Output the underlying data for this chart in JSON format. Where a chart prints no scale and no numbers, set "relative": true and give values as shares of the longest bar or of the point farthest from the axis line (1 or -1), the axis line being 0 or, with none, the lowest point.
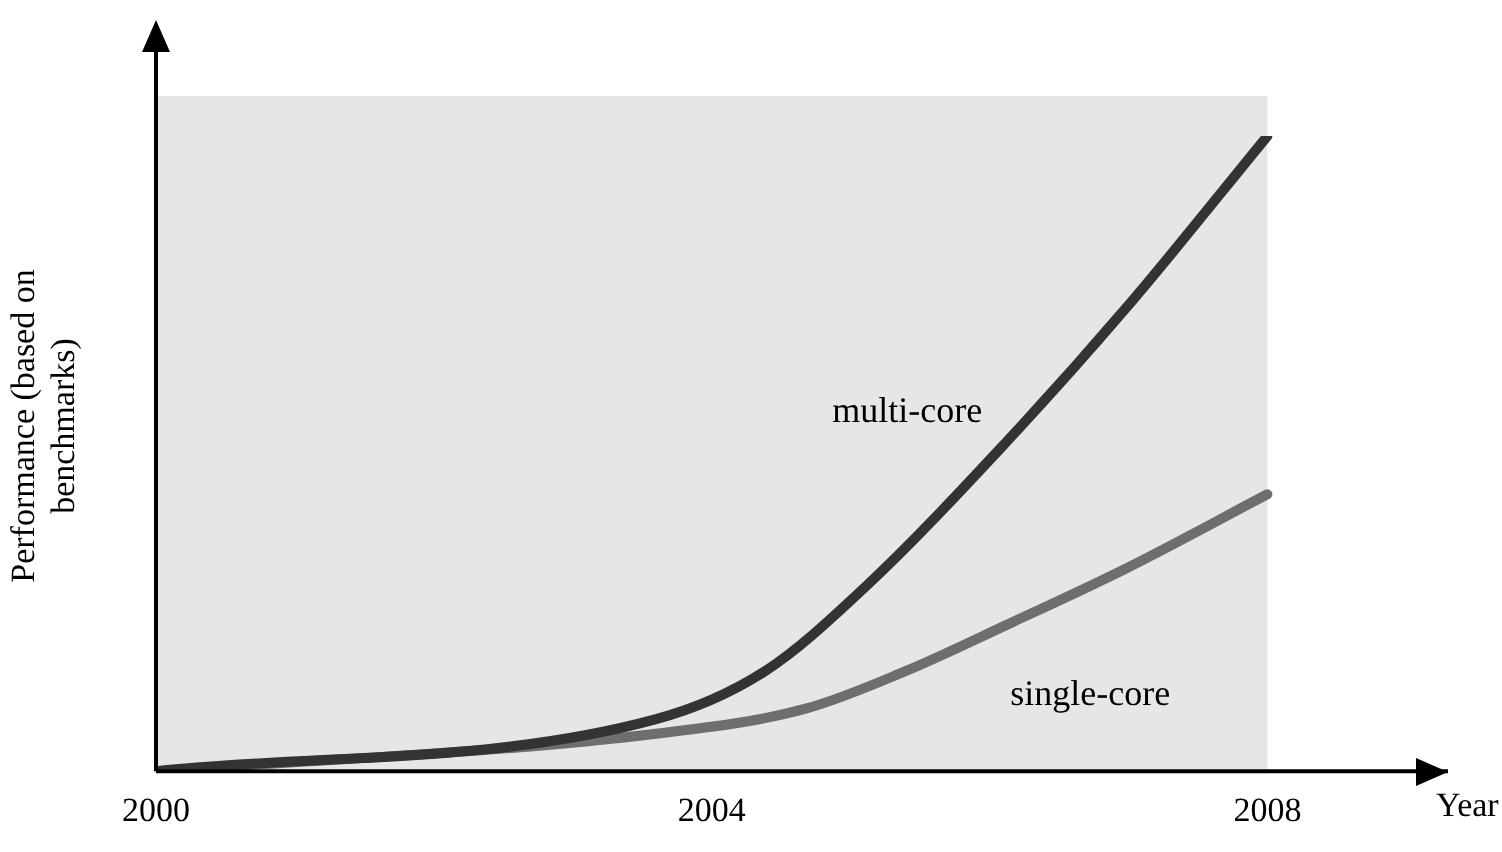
{
  "chart_data": {
    "type": "line",
    "relative": true,
    "xlabel": "Year",
    "ylabel": "Performance (based on benchmarks)",
    "xlim": [
      2000,
      2009.3
    ],
    "xticks": [
      2000,
      2004,
      2008
    ],
    "tick_labels": "x",
    "grid": false,
    "legend": false,
    "marker": "none",
    "line_style": "solid",
    "bands": [
      {
        "axis": "x",
        "from": 2000,
        "to": 2008,
        "color": "#e6e6e6"
      }
    ],
    "series": [
      {
        "name": "multi-core",
        "color": "#333333",
        "x": [
          2000,
          2003.6,
          2004.38,
          2005.1,
          2006.12,
          2006.99,
          2008
        ],
        "values": [
          0,
          0.082,
          0.157,
          0.289,
          0.518,
          0.731,
          1
        ]
      },
      {
        "name": "single-core",
        "color": "#6e6e6e",
        "x": [
          2000,
          2003.6,
          2004.67,
          2005.39,
          2006.12,
          2006.99,
          2008
        ],
        "values": [
          0,
          0.059,
          0.098,
          0.157,
          0.23,
          0.32,
          0.436
        ]
      }
    ]
  }
}
